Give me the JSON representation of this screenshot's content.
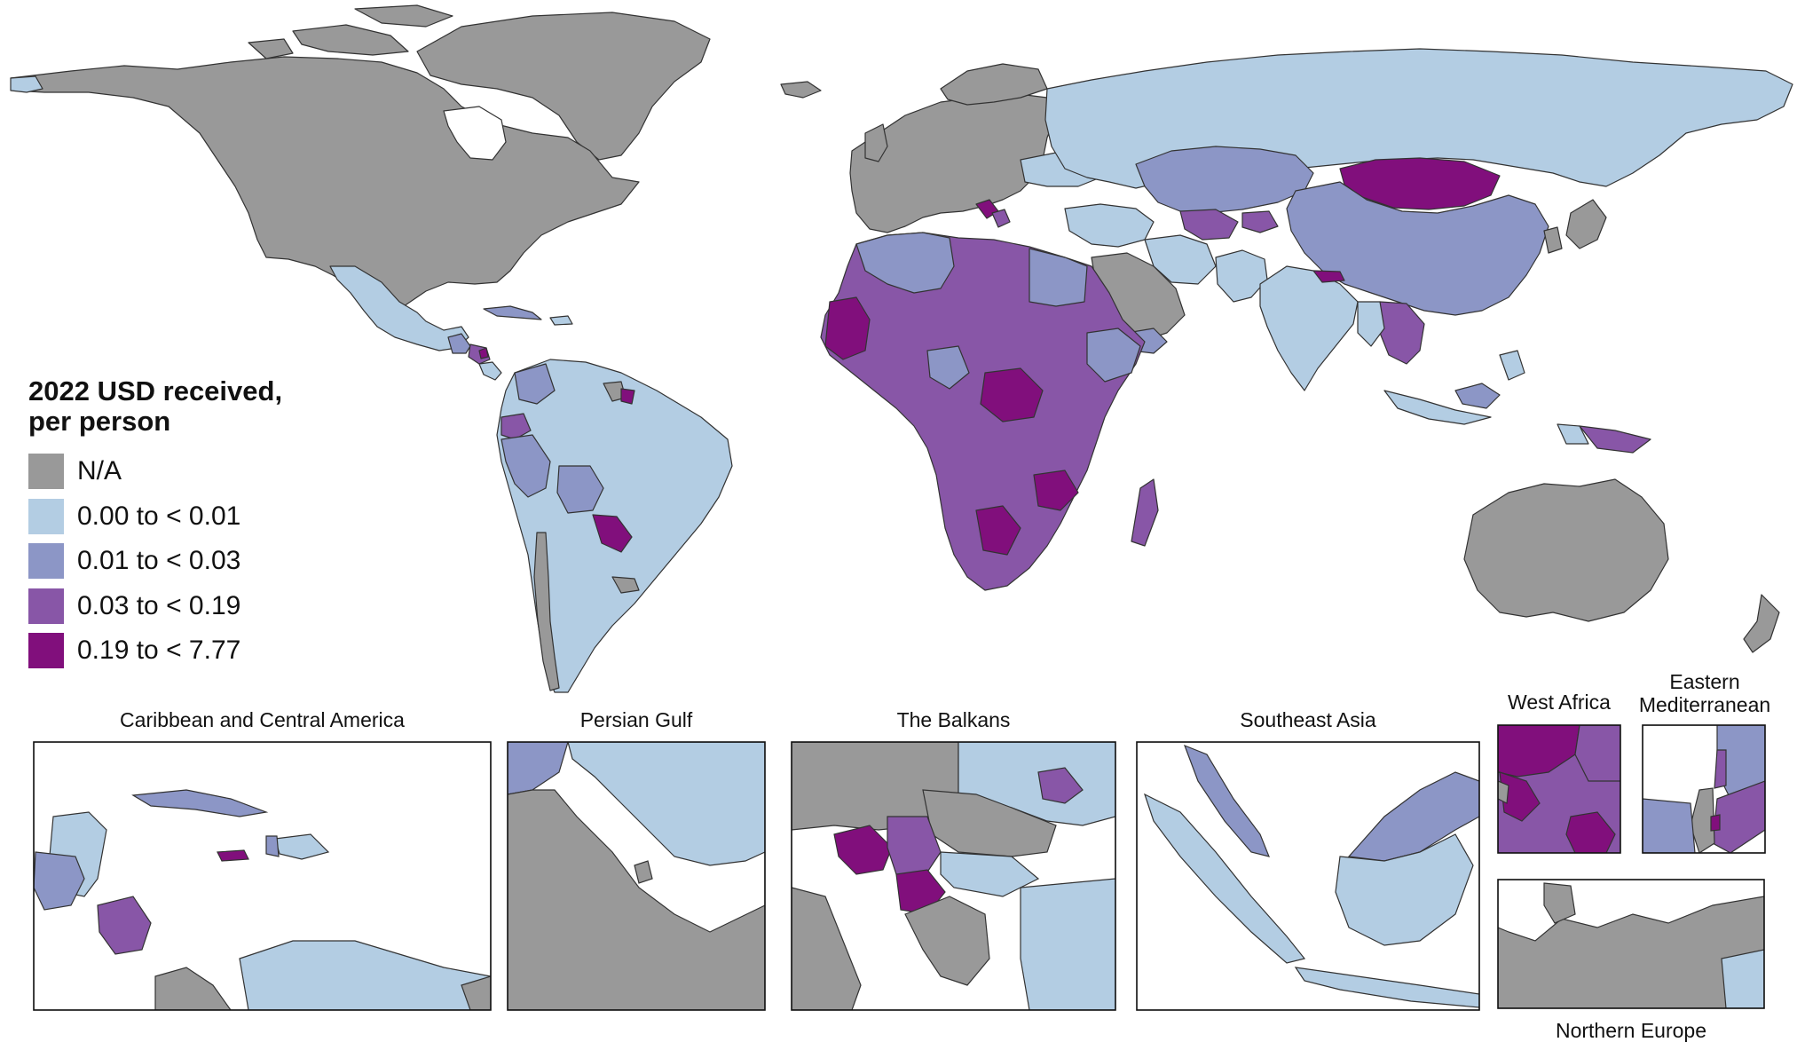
{
  "map": {
    "projection": "Robinson-like world choropleth",
    "colors": {
      "na": "#999999",
      "bin1": "#b3cde3",
      "bin2": "#8c96c6",
      "bin3": "#8856a7",
      "bin4": "#810f7c",
      "ocean": "#ffffff",
      "border": "#333333"
    }
  },
  "legend": {
    "title": "2022 USD received,\nper person",
    "items": [
      {
        "label": "N/A",
        "color": "#999999"
      },
      {
        "label": "0.00 to < 0.01",
        "color": "#b3cde3"
      },
      {
        "label": "0.01 to < 0.03",
        "color": "#8c96c6"
      },
      {
        "label": "0.03 to < 0.19",
        "color": "#8856a7"
      },
      {
        "label": "0.19 to < 7.77",
        "color": "#810f7c"
      }
    ]
  },
  "insets": {
    "caribbean": {
      "title": "Caribbean and Central America"
    },
    "persian_gulf": {
      "title": "Persian Gulf"
    },
    "balkans": {
      "title": "The Balkans"
    },
    "southeast_asia": {
      "title": "Southeast Asia"
    },
    "west_africa": {
      "title": "West Africa"
    },
    "eastern_med": {
      "title": "Eastern\nMediterranean"
    },
    "northern_europe": {
      "title": "Northern Europe"
    }
  }
}
